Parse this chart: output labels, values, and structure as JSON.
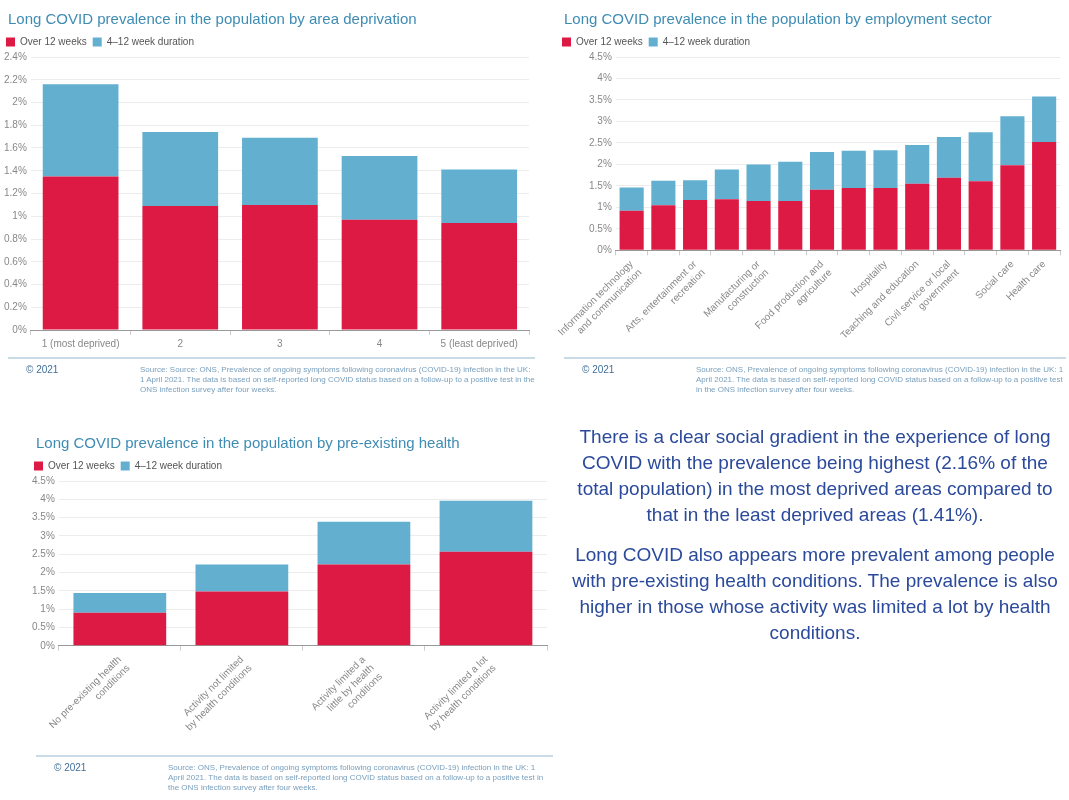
{
  "chart_data": [
    {
      "type": "bar",
      "title": "Long COVID prevalence in the population by area deprivation",
      "categories": [
        "1 (most deprived)",
        "2",
        "3",
        "4",
        "5 (least deprived)"
      ],
      "stacked": true,
      "legend": "top left",
      "grid": "y",
      "series": [
        {
          "name": "Over 12 weeks",
          "color": "#dc1a44",
          "values": [
            1.35,
            1.09,
            1.1,
            0.97,
            0.94
          ]
        },
        {
          "name": "4–12 week duration",
          "color": "#62afd0",
          "values": [
            0.81,
            0.65,
            0.59,
            0.56,
            0.47
          ]
        }
      ],
      "ylim": [
        0,
        2.4
      ],
      "yticks": [
        {
          "value": 0,
          "label": "0%"
        },
        {
          "value": 0.2,
          "label": "0.2%"
        },
        {
          "value": 0.4,
          "label": "0.4%"
        },
        {
          "value": 0.6,
          "label": "0.6%"
        },
        {
          "value": 0.8,
          "label": "0.8%"
        },
        {
          "value": 1,
          "label": "1%"
        },
        {
          "value": 1.2,
          "label": "1.2%"
        },
        {
          "value": 1.4,
          "label": "1.4%"
        },
        {
          "value": 1.6,
          "label": "1.6%"
        },
        {
          "value": 1.8,
          "label": "1.8%"
        },
        {
          "value": 2,
          "label": "2%"
        },
        {
          "value": 2.2,
          "label": "2.2%"
        },
        {
          "value": 2.4,
          "label": "2.4%"
        }
      ],
      "annotations": [
        "© 2021",
        "Source: Source: ONS, Prevalence of ongoing symptoms following coronavirus (COVID-19) infection in the UK: 1 April 2021. The data is based on self-reported long COVID status based on a follow-up to a positive test in the ONS infection survey after four weeks."
      ]
    },
    {
      "type": "bar",
      "title": "Long COVID prevalence in the population by employment sector",
      "categories": [
        "Information technology and communication",
        null,
        "Arts, entertainment or recreation",
        null,
        "Manufacturing or construction",
        null,
        "Food production and agriculture",
        null,
        "Hospitality",
        "Teaching and education",
        "Civil service or local government",
        null,
        "Social care",
        "Health care"
      ],
      "stacked": true,
      "legend": "top left",
      "grid": "y",
      "series": [
        {
          "name": "Over 12 weeks",
          "color": "#dc1a44",
          "values": [
            0.92,
            1.05,
            1.17,
            1.19,
            1.15,
            1.15,
            1.41,
            1.45,
            1.45,
            1.55,
            1.69,
            1.61,
            1.98,
            2.52
          ]
        },
        {
          "name": "4–12 week duration",
          "color": "#62afd0",
          "values": [
            0.54,
            0.57,
            0.46,
            0.69,
            0.85,
            0.91,
            0.88,
            0.87,
            0.88,
            0.9,
            0.95,
            1.14,
            1.14,
            1.06
          ]
        }
      ],
      "ylim": [
        0,
        4.5
      ],
      "yticks": [
        {
          "value": 0,
          "label": "0%"
        },
        {
          "value": 0.5,
          "label": "0.5%"
        },
        {
          "value": 1,
          "label": "1%"
        },
        {
          "value": 1.5,
          "label": "1.5%"
        },
        {
          "value": 2,
          "label": "2%"
        },
        {
          "value": 2.5,
          "label": "2.5%"
        },
        {
          "value": 3,
          "label": "3%"
        },
        {
          "value": 3.5,
          "label": "3.5%"
        },
        {
          "value": 4,
          "label": "4%"
        },
        {
          "value": 4.5,
          "label": "4.5%"
        }
      ],
      "annotations": [
        "© 2021",
        "Source: ONS, Prevalence of ongoing symptoms following coronavirus (COVID-19) infection in the UK: 1 April 2021. The data is based on self-reported long COVID status based on a follow-up to a positive test in the ONS infection survey after four weeks."
      ]
    },
    {
      "type": "bar",
      "title": "Long COVID prevalence in the population by pre-existing health",
      "categories": [
        "No pre-existing health conditions",
        "Activity not limited by health conditions",
        "Activity limited a little by health conditions",
        "Activity limited a lot by health conditions"
      ],
      "stacked": true,
      "legend": "top left",
      "grid": "y",
      "series": [
        {
          "name": "Over 12 weeks",
          "color": "#dc1a44",
          "values": [
            0.9,
            1.48,
            2.22,
            2.57
          ]
        },
        {
          "name": "4–12 week duration",
          "color": "#62afd0",
          "values": [
            0.54,
            0.74,
            1.17,
            1.39
          ]
        }
      ],
      "ylim": [
        0,
        4.5
      ],
      "yticks": [
        {
          "value": 0,
          "label": "0%"
        },
        {
          "value": 0.5,
          "label": "0.5%"
        },
        {
          "value": 1,
          "label": "1%"
        },
        {
          "value": 1.5,
          "label": "1.5%"
        },
        {
          "value": 2,
          "label": "2%"
        },
        {
          "value": 2.5,
          "label": "2.5%"
        },
        {
          "value": 3,
          "label": "3%"
        },
        {
          "value": 3.5,
          "label": "3.5%"
        },
        {
          "value": 4,
          "label": "4%"
        },
        {
          "value": 4.5,
          "label": "4.5%"
        }
      ],
      "annotations": [
        "© 2021",
        "Source: ONS, Prevalence of ongoing symptoms following coronavirus (COVID-19) infection in the UK: 1 April 2021. The data is based on self-reported long COVID status based on a follow-up to a positive test in the ONS infection survey after four weeks."
      ]
    },
    {
      "type": "other",
      "annotations": [
        "There is a clear social gradient in the experience of long COVID with the prevalence being highest (2.16% of the total population) in the most deprived areas compared to that in the least deprived areas (1.41%).",
        "Long COVID also appears more prevalent among people with pre-existing health conditions. The prevalence is also higher in those whose activity was limited a lot by health conditions."
      ]
    }
  ]
}
